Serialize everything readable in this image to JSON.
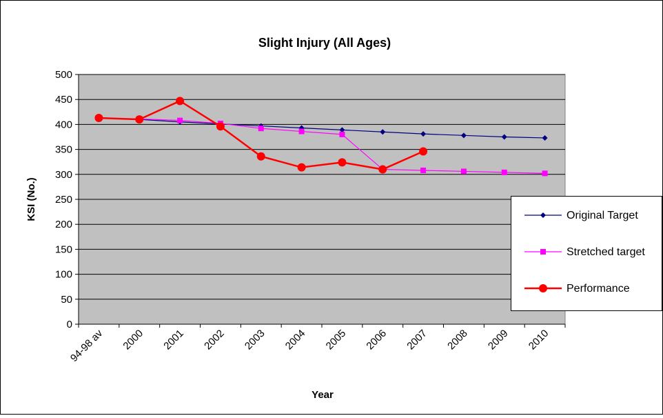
{
  "chart_data": {
    "type": "line",
    "title": "Slight Injury (All Ages)",
    "x_label": "Year",
    "y_label": "KSI (No.)",
    "categories": [
      "94-98 av",
      "2000",
      "2001",
      "2002",
      "2003",
      "2004",
      "2005",
      "2006",
      "2007",
      "2008",
      "2009",
      "2010"
    ],
    "series": [
      {
        "name": "Original Target",
        "color": "#000080",
        "marker": "diamond",
        "values": [
          413,
          410,
          405,
          401,
          397,
          393,
          389,
          385,
          381,
          378,
          375,
          373
        ]
      },
      {
        "name": "Stretched target",
        "color": "#ff00ff",
        "marker": "square",
        "values": [
          413,
          411,
          408,
          402,
          392,
          386,
          380,
          310,
          308,
          306,
          304,
          302
        ]
      },
      {
        "name": "Performance",
        "color": "#ff0000",
        "marker": "circle",
        "values": [
          413,
          410,
          447,
          396,
          336,
          314,
          324,
          310,
          346,
          null,
          null,
          null
        ]
      }
    ],
    "ylim": [
      0,
      500
    ],
    "yticks": [
      0,
      50,
      100,
      150,
      200,
      250,
      300,
      350,
      400,
      450,
      500
    ],
    "grid": true,
    "legend": "right"
  }
}
